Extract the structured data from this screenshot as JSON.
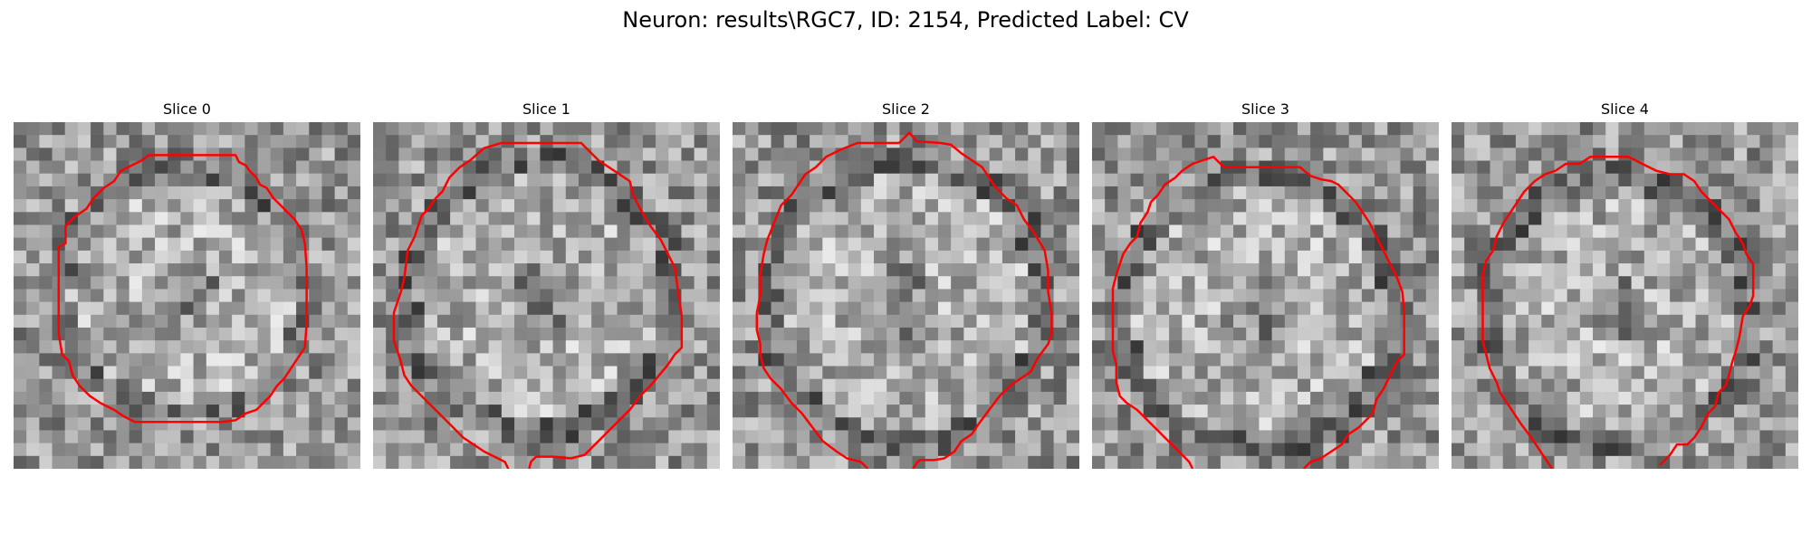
{
  "figure": {
    "title": "Neuron: results\\RGC7, ID: 2154, Predicted Label: CV"
  },
  "panels": [
    {
      "title": "Slice 0"
    },
    {
      "title": "Slice 1"
    },
    {
      "title": "Slice 2"
    },
    {
      "title": "Slice 3"
    },
    {
      "title": "Slice 4"
    }
  ],
  "colors": {
    "contour": "#ff0000",
    "background": "#ffffff"
  }
}
